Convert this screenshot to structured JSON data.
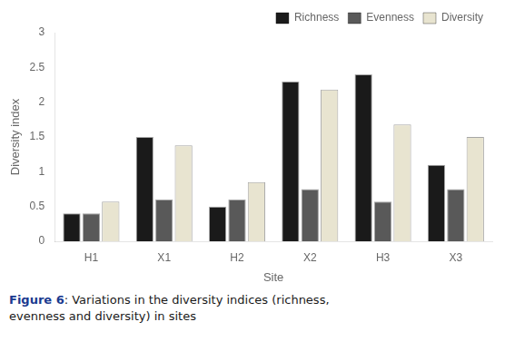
{
  "chart_data": {
    "type": "bar",
    "categories": [
      "H1",
      "X1",
      "H2",
      "X2",
      "H3",
      "X3"
    ],
    "series": [
      {
        "name": "Richness",
        "color": "#1a1a1a",
        "values": [
          0.4,
          1.5,
          0.5,
          2.3,
          2.4,
          1.1
        ]
      },
      {
        "name": "Evenness",
        "color": "#595959",
        "values": [
          0.4,
          0.6,
          0.6,
          0.75,
          0.57,
          0.75
        ]
      },
      {
        "name": "Diversity",
        "color": "#e8e4d0",
        "values": [
          0.57,
          1.38,
          0.85,
          2.18,
          1.68,
          1.5
        ]
      }
    ],
    "xlabel": "Site",
    "ylabel": "Diversity index",
    "ylim": [
      0,
      3
    ],
    "yticks": [
      0,
      0.5,
      1,
      1.5,
      2,
      2.5,
      3
    ],
    "grid": false,
    "legend": "upper right",
    "annotations": [
      "Figure 6",
      ": Variations in the diversity indices (richness,\nevenness and diversity) in sites"
    ]
  }
}
